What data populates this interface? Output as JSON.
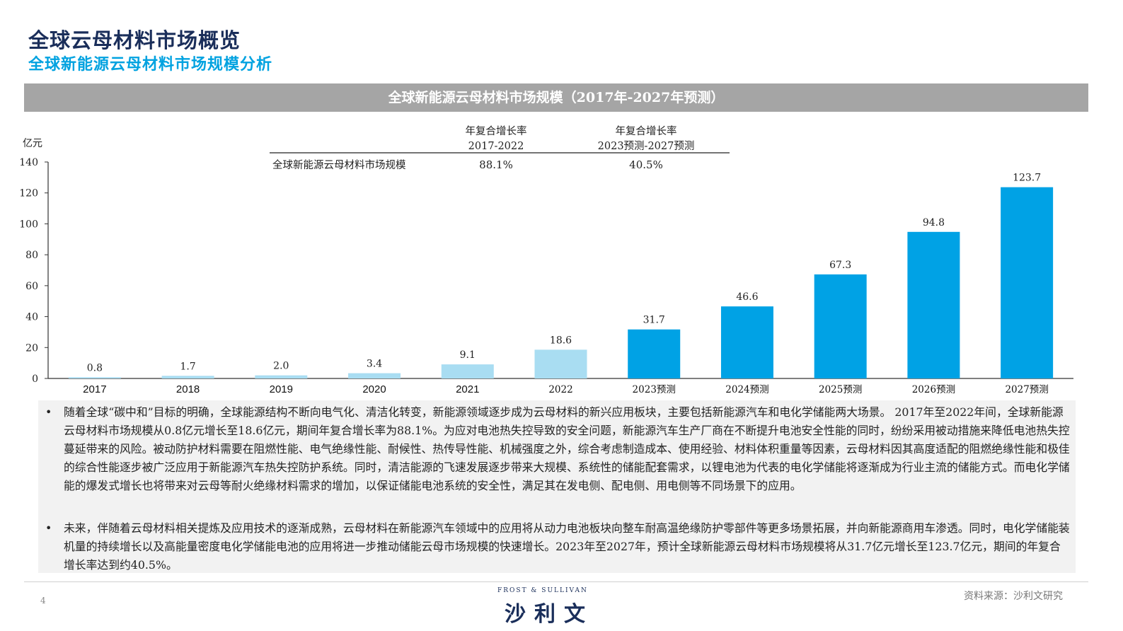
{
  "page": {
    "title": "全球云母材料市场概览",
    "subtitle": "全球新能源云母材料市场规模分析",
    "page_number": "4",
    "source": "资料来源：沙利文研究",
    "logo_top": "FROST & SULLIVAN",
    "logo_main": "沙利文"
  },
  "chart_data": {
    "type": "bar",
    "title": "全球新能源云母材料市场规模（2017年-2027年预测）",
    "ylabel": "亿元",
    "ylim": [
      0,
      140
    ],
    "yticks": [
      0,
      20,
      40,
      60,
      80,
      100,
      120,
      140
    ],
    "categories": [
      "2017",
      "2018",
      "2019",
      "2020",
      "2021",
      "2022",
      "2023预测",
      "2024预测",
      "2025预测",
      "2026预测",
      "2027预测"
    ],
    "values": [
      0.8,
      1.7,
      2.0,
      3.4,
      9.1,
      18.6,
      31.7,
      46.6,
      67.3,
      94.8,
      123.7
    ],
    "value_labels": [
      "0.8",
      "1.7",
      "2.0",
      "3.4",
      "9.1",
      "18.6",
      "31.7",
      "46.6",
      "67.3",
      "94.8",
      "123.7"
    ],
    "colors": {
      "historical": "#a9ddf2",
      "forecast": "#00a2e5",
      "header_bg": "#a5a5a5",
      "axis": "#333333"
    },
    "bar_groups": [
      "historical",
      "historical",
      "historical",
      "historical",
      "historical",
      "historical",
      "forecast",
      "forecast",
      "forecast",
      "forecast",
      "forecast"
    ],
    "cagr_table": {
      "columns": [
        "年复合增长率\n2017-2022",
        "年复合增长率\n2023预测-2027预测"
      ],
      "row_label": "全球新能源云母材料市场规模",
      "values": [
        "88.1%",
        "40.5%"
      ]
    }
  },
  "bullets": [
    "随着全球“碳中和”目标的明确，全球能源结构不断向电气化、清洁化转变，新能源领域逐步成为云母材料的新兴应用板块，主要包括新能源汽车和电化学储能两大场景。 2017年至2022年间，全球新能源云母材料市场规模从0.8亿元增长至18.6亿元，期间年复合增长率为88.1%。为应对电池热失控导致的安全问题，新能源汽车生产厂商在不断提升电池安全性能的同时，纷纷采用被动措施来降低电池热失控蔓延带来的风险。被动防护材料需要在阻燃性能、电气绝缘性能、耐候性、热传导性能、机械强度之外，综合考虑制造成本、使用经验、材料体积重量等因素，云母材料因其高度适配的阻燃绝缘性能和极佳的综合性能逐步被广泛应用于新能源汽车热失控防护系统。同时，清洁能源的飞速发展逐步带来大规模、系统性的储能配套需求，以锂电池为代表的电化学储能将逐渐成为行业主流的储能方式。而电化学储能的爆发式增长也将带来对云母等耐火绝缘材料需求的增加，以保证储能电池系统的安全性，满足其在发电侧、配电侧、用电侧等不同场景下的应用。",
    "未来，伴随着云母材料相关提炼及应用技术的逐渐成熟，云母材料在新能源汽车领域中的应用将从动力电池板块向整车耐高温绝缘防护零部件等更多场景拓展，并向新能源商用车渗透。同时，电化学储能装机量的持续增长以及高能量密度电化学储能电池的应用将进一步推动储能云母市场规模的快速增长。2023年至2027年，预计全球新能源云母材料市场规模将从31.7亿元增长至123.7亿元，期间的年复合增长率达到约40.5%。"
  ],
  "bullet_symbol": "•"
}
